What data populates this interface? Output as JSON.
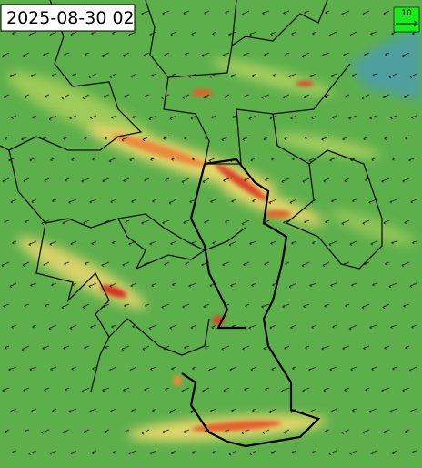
{
  "header": {
    "timestamp": "2025-08-30 02"
  },
  "legend": {
    "label": 10
  }
}
